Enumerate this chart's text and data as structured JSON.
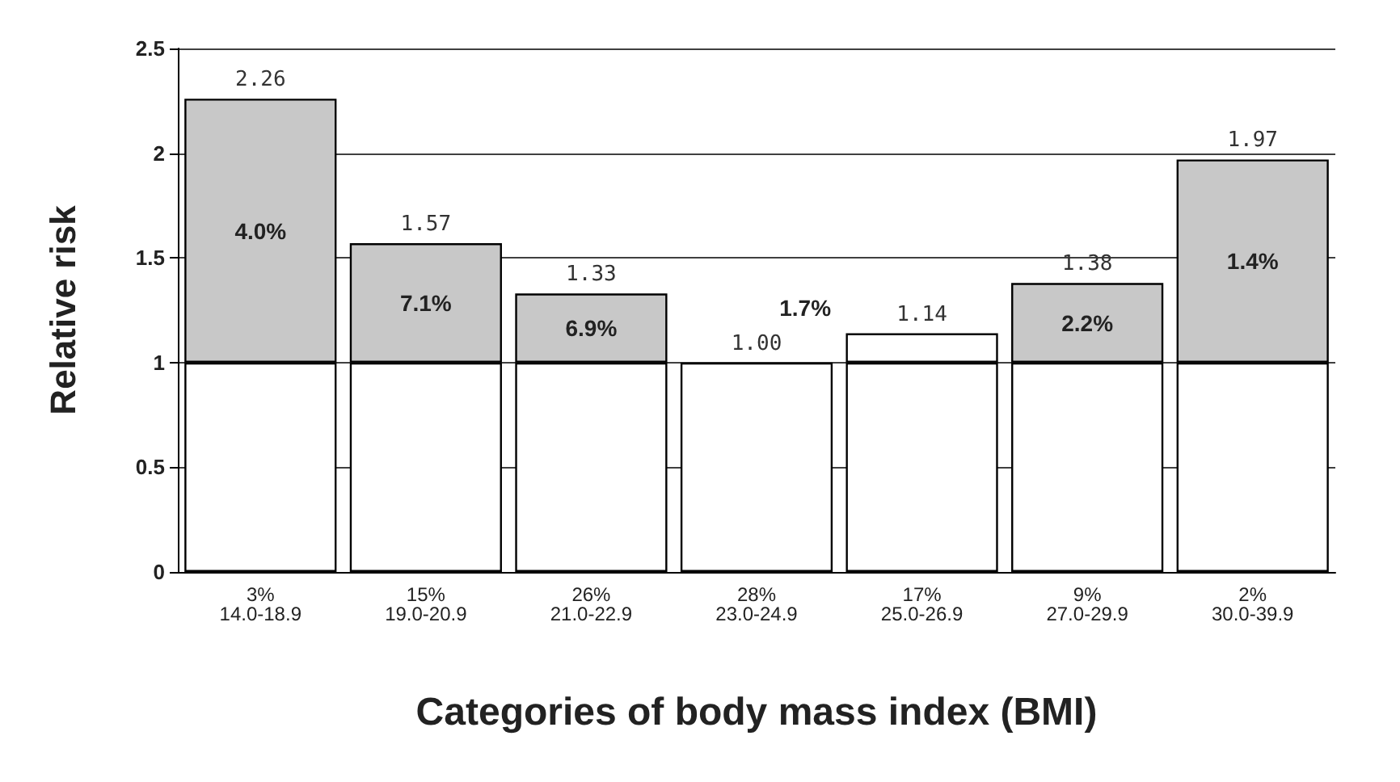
{
  "chart_data": {
    "type": "bar",
    "stacked": true,
    "ylabel": "Relative risk",
    "xlabel": "Categories of body mass index (BMI)",
    "categories": [
      "3%\n14.0-18.9",
      "15%\n19.0-20.9",
      "26%\n21.0-22.9",
      "28%\n23.0-24.9",
      "17%\n25.0-26.9",
      "9%\n27.0-29.9",
      "2%\n30.0-39.9"
    ],
    "series": [
      {
        "color": "#ffffff",
        "values": [
          1,
          1,
          1,
          1,
          1,
          1,
          1
        ]
      },
      {
        "colors": [
          "#c8c8c8",
          "#c8c8c8",
          "#c8c8c8",
          "#c8c8c8",
          "#ffffff",
          "#c8c8c8",
          "#c8c8c8"
        ],
        "values": [
          1.26,
          0.57,
          0.33,
          0,
          0.14,
          0.38,
          0.97
        ]
      }
    ],
    "totals": [
      "2.26",
      "1.57",
      "1.33",
      "1.00",
      "1.14",
      "1.38",
      "1.97"
    ],
    "annotations": [
      "4.0%",
      "7.1%",
      "6.9%",
      "1.7%",
      "2.2%",
      "1.4%"
    ],
    "ylim": [
      0,
      2.5
    ],
    "yticks": [
      0,
      0.5,
      1,
      1.5,
      2,
      2.5
    ],
    "grid": "y"
  }
}
